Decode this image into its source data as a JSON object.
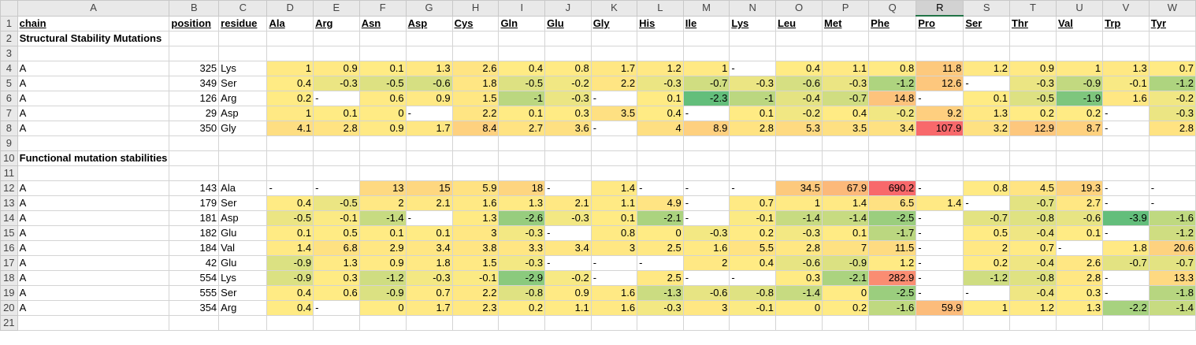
{
  "columns": [
    "A",
    "B",
    "C",
    "D",
    "E",
    "F",
    "G",
    "H",
    "I",
    "J",
    "K",
    "L",
    "M",
    "N",
    "O",
    "P",
    "Q",
    "R",
    "S",
    "T",
    "U",
    "V",
    "W"
  ],
  "selected_column": "R",
  "header": [
    "chain",
    "position",
    "residue",
    "Ala",
    "Arg",
    "Asn",
    "Asp",
    "Cys",
    "Gln",
    "Glu",
    "Gly",
    "His",
    "Ile",
    "Lys",
    "Leu",
    "Met",
    "Phe",
    "Pro",
    "Ser",
    "Thr",
    "Val",
    "Trp",
    "Tyr"
  ],
  "section1_title": "Structural Stability Mutations",
  "section2_title": "Functional mutation stabilities",
  "rows1": [
    [
      "A",
      "325",
      "Lys",
      "1",
      "0.9",
      "0.1",
      "1.3",
      "2.6",
      "0.4",
      "0.8",
      "1.7",
      "1.2",
      "1",
      "-",
      "0.4",
      "1.1",
      "0.8",
      "11.8",
      "1.2",
      "0.9",
      "1",
      "1.3",
      "0.7"
    ],
    [
      "A",
      "349",
      "Ser",
      "0.4",
      "-0.3",
      "-0.5",
      "-0.6",
      "1.8",
      "-0.5",
      "-0.2",
      "2.2",
      "-0.3",
      "-0.7",
      "-0.3",
      "-0.6",
      "-0.3",
      "-1.2",
      "12.6",
      "-",
      "-0.3",
      "-0.9",
      "-0.1",
      "-1.2"
    ],
    [
      "A",
      "126",
      "Arg",
      "0.2",
      "-",
      "0.6",
      "0.9",
      "1.5",
      "-1",
      "-0.3",
      "-",
      "0.1",
      "-2.3",
      "-1",
      "-0.4",
      "-0.7",
      "14.8",
      "-",
      "0.1",
      "-0.5",
      "-1.9",
      "1.6",
      "-0.2"
    ],
    [
      "A",
      "29",
      "Asp",
      "1",
      "0.1",
      "0",
      "-",
      "2.2",
      "0.1",
      "0.3",
      "3.5",
      "0.4",
      "-",
      "0.1",
      "-0.2",
      "0.4",
      "-0.2",
      "9.2",
      "1.3",
      "0.2",
      "0.2",
      "-",
      "-0.3"
    ],
    [
      "A",
      "350",
      "Gly",
      "4.1",
      "2.8",
      "0.9",
      "1.7",
      "8.4",
      "2.7",
      "3.6",
      "-",
      "4",
      "8.9",
      "2.8",
      "5.3",
      "3.5",
      "3.4",
      "107.9",
      "3.2",
      "12.9",
      "8.7",
      "-",
      "2.8"
    ]
  ],
  "rows2": [
    [
      "A",
      "143",
      "Ala",
      "-",
      "-",
      "13",
      "15",
      "5.9",
      "18",
      "-",
      "1.4",
      "-",
      "-",
      "-",
      "34.5",
      "67.9",
      "690.2",
      "-",
      "0.8",
      "4.5",
      "19.3",
      "-",
      "-"
    ],
    [
      "A",
      "179",
      "Ser",
      "0.4",
      "-0.5",
      "2",
      "2.1",
      "1.6",
      "1.3",
      "2.1",
      "1.1",
      "4.9",
      "-",
      "0.7",
      "1",
      "1.4",
      "6.5",
      "1.4",
      "-",
      "-0.7",
      "2.7",
      "-",
      "-"
    ],
    [
      "A",
      "181",
      "Asp",
      "-0.5",
      "-0.1",
      "-1.4",
      "-",
      "1.3",
      "-2.6",
      "-0.3",
      "0.1",
      "-2.1",
      "-",
      "-0.1",
      "-1.4",
      "-1.4",
      "-2.5",
      "-",
      "-0.7",
      "-0.8",
      "-0.6",
      "-3.9",
      "-1.6"
    ],
    [
      "A",
      "182",
      "Glu",
      "0.1",
      "0.5",
      "0.1",
      "0.1",
      "3",
      "-0.3",
      "-",
      "0.8",
      "0",
      "-0.3",
      "0.2",
      "-0.3",
      "0.1",
      "-1.7",
      "-",
      "0.5",
      "-0.4",
      "0.1",
      "-",
      "-1.2"
    ],
    [
      "A",
      "184",
      "Val",
      "1.4",
      "6.8",
      "2.9",
      "3.4",
      "3.8",
      "3.3",
      "3.4",
      "3",
      "2.5",
      "1.6",
      "5.5",
      "2.8",
      "7",
      "11.5",
      "-",
      "2",
      "0.7",
      "-",
      "1.8",
      "20.6"
    ],
    [
      "A",
      "42",
      "Glu",
      "-0.9",
      "1.3",
      "0.9",
      "1.8",
      "1.5",
      "-0.3",
      "-",
      "-",
      "-",
      "2",
      "0.4",
      "-0.6",
      "-0.9",
      "1.2",
      "-",
      "0.2",
      "-0.4",
      "2.6",
      "-0.7",
      "-0.7"
    ],
    [
      "A",
      "554",
      "Lys",
      "-0.9",
      "0.3",
      "-1.2",
      "-0.3",
      "-0.1",
      "-2.9",
      "-0.2",
      "-",
      "2.5",
      "-",
      "-",
      "0.3",
      "-2.1",
      "282.9",
      "-",
      "-1.2",
      "-0.8",
      "2.8",
      "-",
      "13.3"
    ],
    [
      "A",
      "555",
      "Ser",
      "0.4",
      "0.6",
      "-0.9",
      "0.7",
      "2.2",
      "-0.8",
      "0.9",
      "1.6",
      "-1.3",
      "-0.6",
      "-0.8",
      "-1.4",
      "0",
      "-2.5",
      "-",
      "-",
      "-0.4",
      "0.3",
      "-",
      "-1.8"
    ],
    [
      "A",
      "354",
      "Arg",
      "0.4",
      "-",
      "0",
      "1.7",
      "2.3",
      "0.2",
      "1.1",
      "1.6",
      "-0.3",
      "3",
      "-0.1",
      "0",
      "0.2",
      "-1.6",
      "59.9",
      "1",
      "1.2",
      "1.3",
      "-2.2",
      "-1.4"
    ]
  ],
  "colors": {
    "low": "#63be7b",
    "mid": "#ffeb84",
    "high": "#f8696b",
    "header_bg": "#e9e9e9",
    "selected_header": "#217346"
  },
  "row_count": 21
}
